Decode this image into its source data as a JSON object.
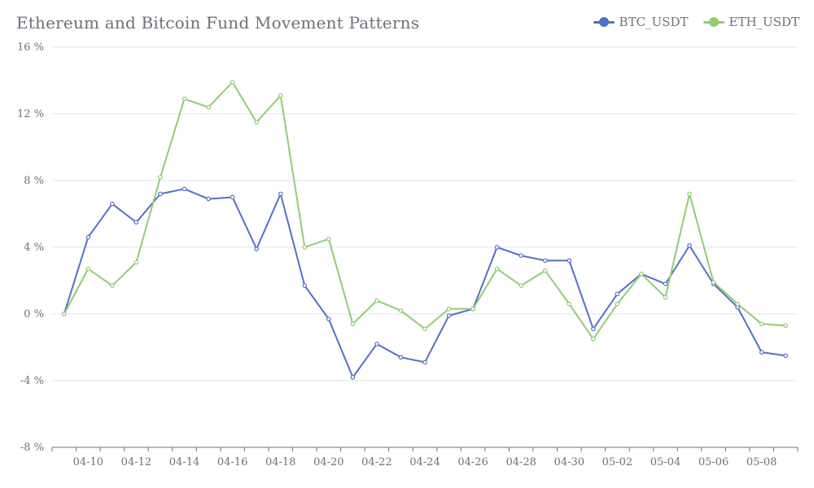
{
  "chart_data": {
    "type": "line",
    "title": "Ethereum and Bitcoin Fund Movement Patterns",
    "y_axis": {
      "min": -8,
      "max": 16,
      "step": 4,
      "ticks": [
        "-8 %",
        "-4 %",
        "0 %",
        "4 %",
        "8 %",
        "12 %",
        "16 %"
      ]
    },
    "x_tick_labels": [
      "04-10",
      "04-12",
      "04-14",
      "04-16",
      "04-18",
      "04-20",
      "04-22",
      "04-24",
      "04-26",
      "04-28",
      "04-30",
      "05-02",
      "05-04",
      "05-06",
      "05-08"
    ],
    "grid": true,
    "legend_position": "top-right",
    "series": [
      {
        "name": "BTC_USDT",
        "color": "#5470c6",
        "values": [
          0,
          4.6,
          6.6,
          5.5,
          7.2,
          7.5,
          6.9,
          7.0,
          3.9,
          7.2,
          1.7,
          -0.3,
          -3.8,
          -1.8,
          -2.6,
          -2.9,
          -0.1,
          0.3,
          4.0,
          3.5,
          3.2,
          3.2,
          -0.9,
          1.2,
          2.4,
          1.8,
          4.1,
          1.8,
          0.4,
          -2.3,
          -2.5
        ]
      },
      {
        "name": "ETH_USDT",
        "color": "#91cc75",
        "values": [
          0,
          2.7,
          1.7,
          3.1,
          8.2,
          12.9,
          12.4,
          13.9,
          11.5,
          13.1,
          4.0,
          4.5,
          -0.6,
          0.8,
          0.2,
          -0.9,
          0.3,
          0.3,
          2.7,
          1.7,
          2.6,
          0.6,
          -1.5,
          0.6,
          2.4,
          1.0,
          7.2,
          1.9,
          0.6,
          -0.6,
          -0.7
        ]
      }
    ]
  },
  "colors": {
    "axis": "#6e7079",
    "grid": "#e0e6f1",
    "background": "#ffffff"
  }
}
